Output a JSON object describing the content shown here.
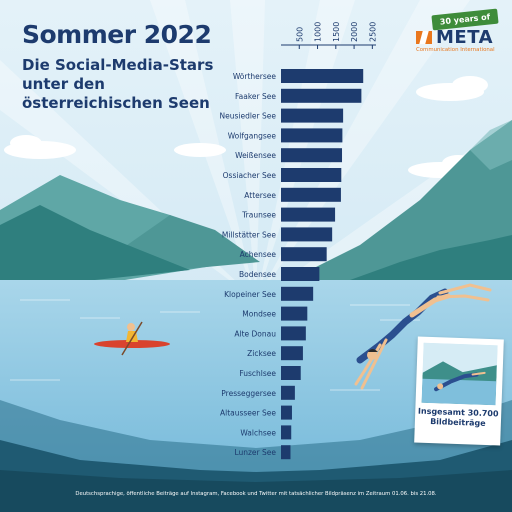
{
  "header": {
    "title": "Sommer 2022",
    "subtitle": "Die Social-Media-Stars unter den österreichischen Seen"
  },
  "logo": {
    "ribbon": "30 years of",
    "name": "META",
    "tagline": "Communication International"
  },
  "total_box": {
    "text": "Insgesamt 30.700 Bildbeiträge"
  },
  "footnote": "Deutschsprachige, öffentliche Beiträge auf Instagram, Facebook und Twitter mit tatsächlicher Bildpräsenz im Zeitraum 01.06. bis 21.08.",
  "colors": {
    "bar": "#1d3b6e",
    "title": "#1d3b6e",
    "sky": "#dceef7",
    "lake": "#8fc9e4",
    "mountain_dark": "#2f7f7e",
    "mountain_light": "#5fa7a6"
  },
  "chart_data": {
    "type": "bar",
    "orientation": "horizontal",
    "title": "Sommer 2022",
    "subtitle": "Die Social-Media-Stars unter den österreichischen Seen",
    "categories": [
      "Wörthersee",
      "Faaker See",
      "Neusiedler See",
      "Wolfgangsee",
      "Weißensee",
      "Ossiacher See",
      "Attersee",
      "Traunsee",
      "Millstätter See",
      "Achensee",
      "Bodensee",
      "Klopeiner See",
      "Mondsee",
      "Alte Donau",
      "Zicksee",
      "Fuschlsee",
      "Presseggersee",
      "Altausseer See",
      "Walchsee",
      "Lunzer See"
    ],
    "values": [
      2250,
      2200,
      1700,
      1680,
      1670,
      1650,
      1640,
      1480,
      1400,
      1250,
      1050,
      880,
      720,
      680,
      600,
      540,
      380,
      300,
      280,
      260
    ],
    "xlim": [
      0,
      2600
    ],
    "xticks": [
      "500",
      "1000",
      "1500",
      "2000",
      "2500"
    ],
    "xtick_values": [
      500,
      1000,
      1500,
      2000,
      2500
    ],
    "axis_position": "top",
    "grid": false,
    "legend": "none"
  }
}
